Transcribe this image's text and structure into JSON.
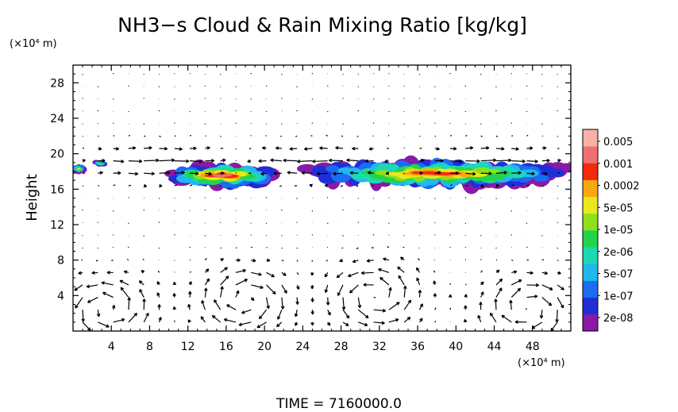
{
  "chart_data": {
    "type": "heatmap",
    "title": "NH3−s Cloud & Rain Mixing Ratio [kg/kg]",
    "ylabel": "Height",
    "y_unit": "(×10⁴ m)",
    "x_unit": "(×10⁴ m)",
    "footer": "TIME = 7160000.0",
    "xlim": [
      0,
      52
    ],
    "ylim": [
      0,
      30
    ],
    "x_ticks": [
      4,
      8,
      12,
      16,
      20,
      24,
      28,
      32,
      36,
      40,
      44,
      48
    ],
    "y_ticks": [
      4,
      8,
      12,
      16,
      20,
      24,
      28
    ],
    "grid": false,
    "colorbar": {
      "labels": [
        "0.005",
        "0.001",
        "0.0002",
        "5e-05",
        "1e-05",
        "2e-06",
        "5e-07",
        "1e-07",
        "2e-08"
      ],
      "colors": [
        "#8a1aa6",
        "#1f2fd6",
        "#1c6cf0",
        "#21b8f0",
        "#1bd9b4",
        "#22d44a",
        "#8ee01c",
        "#e8e81a",
        "#f8a810",
        "#f42a0c",
        "#f07070",
        "#f8b0a8"
      ]
    },
    "cloud_regions": [
      {
        "x": [
          0.0,
          1.2
        ],
        "y": [
          17.7,
          18.9
        ],
        "max": "1e-05"
      },
      {
        "x": [
          2.2,
          3.4
        ],
        "y": [
          18.5,
          19.3
        ],
        "max": "2e-06"
      },
      {
        "x": [
          10.0,
          21.0
        ],
        "y": [
          16.0,
          19.0
        ],
        "max": "0.001"
      },
      {
        "x": [
          24.0,
          52.0
        ],
        "y": [
          16.0,
          19.5
        ],
        "max": "0.0002"
      }
    ],
    "circulation_cells": [
      {
        "x": 3.5,
        "y": 2.5
      },
      {
        "x": 18,
        "y": 3.5
      },
      {
        "x": 31.5,
        "y": 4.0
      },
      {
        "x": 47.5,
        "y": 2.5
      }
    ]
  }
}
